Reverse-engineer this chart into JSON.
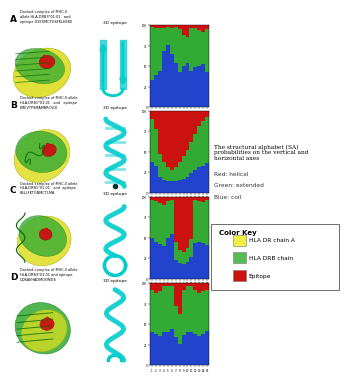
{
  "panel_letters": [
    "A",
    "B",
    "C",
    "D"
  ],
  "panel_labels": [
    "Docked complex of MHC-II\nallele HLA-DRB3*01:01   and\nepitope GSYVMCTGSFKLEEKE",
    "Docked complex of MHC-II allele\nHLA-DRB1*01:01   and   epitope\nEMEVTPSMAMBRCVGI",
    "Docked complex of MHC-II allele\nHLA-DRB1*01:01   and  epitope\nKSLLFKTGNMCTLMA",
    "Docked complex of MHC-II allele\nHLA-DRB3*01:01 and epitope\nDQKAVHADMGYWIES"
  ],
  "sa_description": "The structural alphabet (SA)\nprobabilities on the vertical and\nhorizontal axes",
  "color_legend": [
    "Red: helical",
    "Green: extended",
    "Blue: coil"
  ],
  "color_key_title": "Color Key",
  "color_key_items": [
    {
      "label": "HLA DR chain A",
      "color": "#EEEE44"
    },
    {
      "label": "HLA DRB chain",
      "color": "#55BB55"
    },
    {
      "label": "Epitope",
      "color": "#CC1111"
    }
  ],
  "sa_colors": {
    "helical": "#CC1111",
    "extended": "#33AA33",
    "coil": "#2244CC"
  },
  "cyan": "#00CCCC",
  "sa_A": {
    "helical": [
      0.02,
      0.03,
      0.04,
      0.03,
      0.02,
      0.03,
      0.02,
      0.05,
      0.12,
      0.14,
      0.04,
      0.03,
      0.06,
      0.08,
      0.05
    ],
    "extended": [
      0.65,
      0.58,
      0.52,
      0.28,
      0.22,
      0.32,
      0.44,
      0.52,
      0.38,
      0.32,
      0.52,
      0.48,
      0.44,
      0.4,
      0.52
    ],
    "coil": [
      0.33,
      0.39,
      0.44,
      0.69,
      0.76,
      0.65,
      0.54,
      0.43,
      0.5,
      0.54,
      0.44,
      0.49,
      0.5,
      0.52,
      0.43
    ]
  },
  "sa_B": {
    "helical": [
      0.1,
      0.22,
      0.52,
      0.62,
      0.68,
      0.72,
      0.68,
      0.62,
      0.55,
      0.48,
      0.38,
      0.28,
      0.18,
      0.12,
      0.08
    ],
    "extended": [
      0.52,
      0.45,
      0.28,
      0.22,
      0.18,
      0.14,
      0.18,
      0.22,
      0.28,
      0.32,
      0.38,
      0.44,
      0.5,
      0.55,
      0.55
    ],
    "coil": [
      0.38,
      0.33,
      0.2,
      0.16,
      0.14,
      0.14,
      0.14,
      0.16,
      0.17,
      0.2,
      0.24,
      0.28,
      0.32,
      0.33,
      0.37
    ]
  },
  "sa_C": {
    "helical": [
      0.04,
      0.05,
      0.08,
      0.1,
      0.05,
      0.04,
      0.55,
      0.65,
      0.68,
      0.62,
      0.52,
      0.04,
      0.05,
      0.06,
      0.04
    ],
    "extended": [
      0.46,
      0.5,
      0.5,
      0.5,
      0.46,
      0.42,
      0.22,
      0.16,
      0.14,
      0.18,
      0.22,
      0.52,
      0.5,
      0.5,
      0.55
    ],
    "coil": [
      0.5,
      0.45,
      0.42,
      0.4,
      0.49,
      0.54,
      0.23,
      0.19,
      0.18,
      0.2,
      0.26,
      0.44,
      0.45,
      0.44,
      0.41
    ]
  },
  "sa_D": {
    "helical": [
      0.08,
      0.12,
      0.1,
      0.04,
      0.04,
      0.04,
      0.28,
      0.38,
      0.08,
      0.04,
      0.04,
      0.08,
      0.12,
      0.1,
      0.08
    ],
    "extended": [
      0.52,
      0.5,
      0.54,
      0.55,
      0.55,
      0.52,
      0.38,
      0.36,
      0.55,
      0.56,
      0.55,
      0.54,
      0.52,
      0.52,
      0.5
    ],
    "coil": [
      0.4,
      0.38,
      0.36,
      0.41,
      0.41,
      0.44,
      0.34,
      0.26,
      0.37,
      0.4,
      0.41,
      0.38,
      0.36,
      0.38,
      0.42
    ]
  },
  "background": "#FFFFFF"
}
